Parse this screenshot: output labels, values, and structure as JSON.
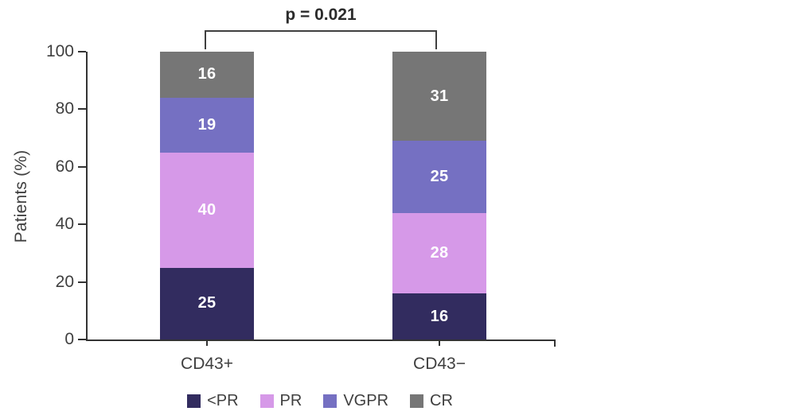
{
  "figure": {
    "background": "#ffffff",
    "axis_color": "#333333",
    "text_color": "#3f3f3f",
    "annotation_text": "p = 0.021"
  },
  "chart_data": {
    "type": "bar",
    "subtype": "stacked",
    "title": "",
    "xlabel": "",
    "ylabel": "Patients (%)",
    "ylim": [
      0,
      100
    ],
    "yticks": [
      0,
      20,
      40,
      60,
      80,
      100
    ],
    "grid": false,
    "legend_position": "bottom",
    "categories": [
      "CD43+",
      "CD43−"
    ],
    "series": [
      {
        "name": "<PR",
        "color": "#322c5f",
        "values": [
          25,
          16
        ]
      },
      {
        "name": "PR",
        "color": "#d699e8",
        "values": [
          40,
          28
        ]
      },
      {
        "name": "VGPR",
        "color": "#7570c2",
        "values": [
          19,
          25
        ]
      },
      {
        "name": "CR",
        "color": "#767676",
        "values": [
          16,
          31
        ]
      }
    ],
    "annotation": {
      "text": "p = 0.021",
      "between": [
        "CD43+",
        "CD43−"
      ]
    }
  }
}
